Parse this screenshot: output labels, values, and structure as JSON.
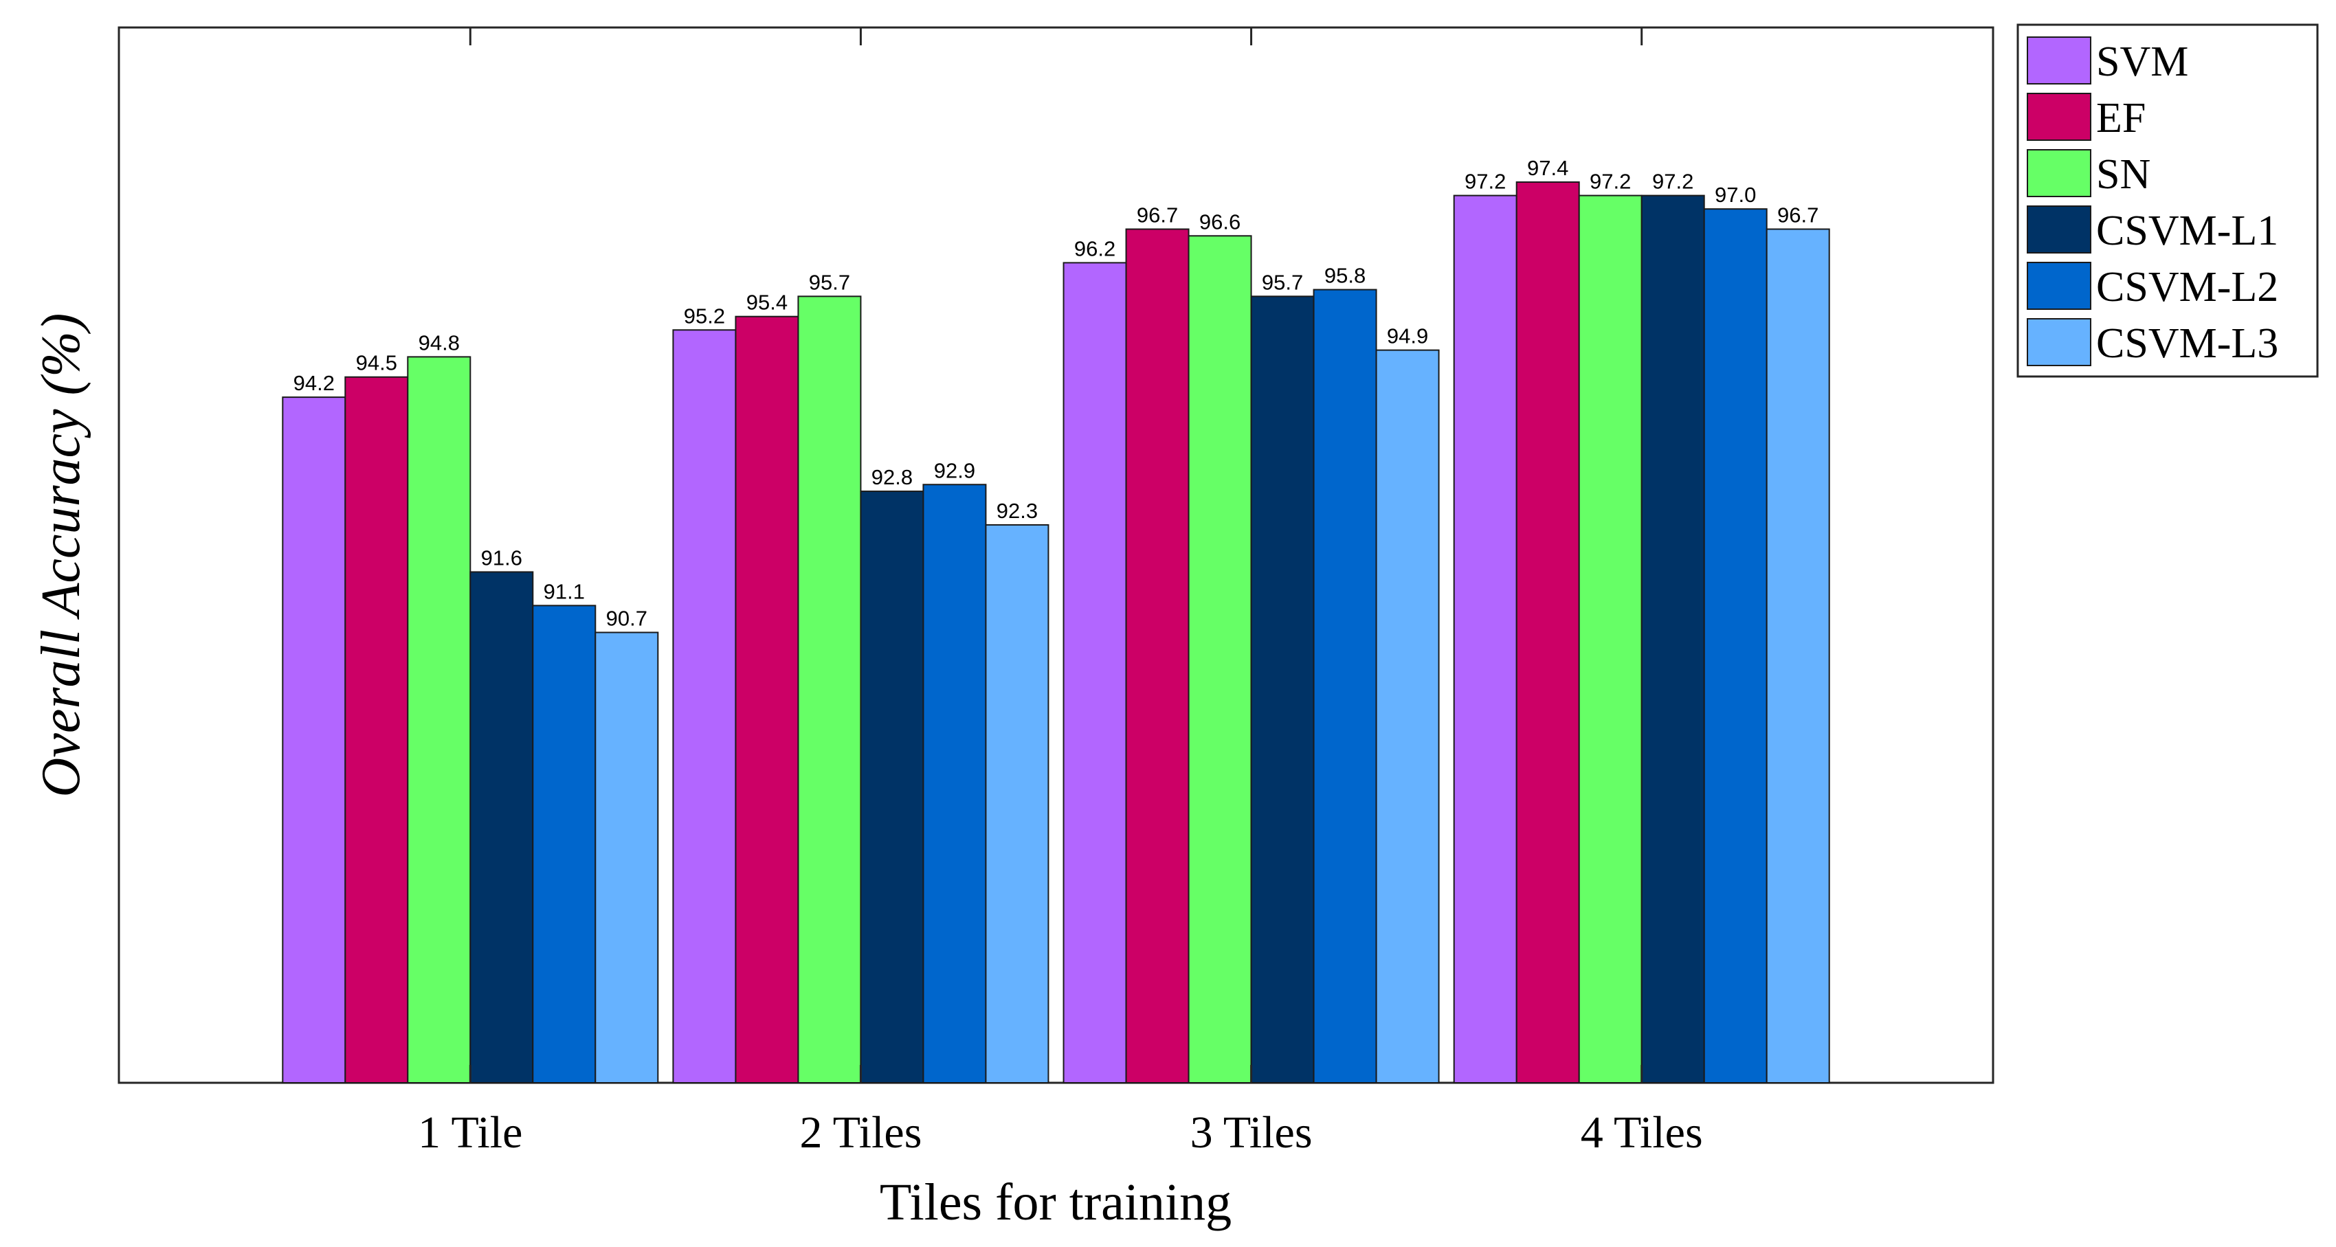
{
  "chart_data": {
    "type": "bar",
    "title": "",
    "xlabel": "Tiles for training",
    "ylabel": "Overall Accuracy (%)",
    "categories": [
      "1 Tile",
      "2 Tiles",
      "3 Tiles",
      "4 Tiles"
    ],
    "ylim": [
      84,
      99.7
    ],
    "legend_position": "outside-top-right",
    "series": [
      {
        "name": "SVM",
        "color": "#B266FF",
        "values": [
          94.2,
          95.2,
          96.2,
          97.2
        ],
        "labels": [
          "94.2",
          "95.2",
          "96.2",
          "97.2"
        ]
      },
      {
        "name": "EF",
        "color": "#CC0066",
        "values": [
          94.5,
          95.4,
          96.7,
          97.4
        ],
        "labels": [
          "94.5",
          "95.4",
          "96.7",
          "97.4"
        ]
      },
      {
        "name": "SN",
        "color": "#66FF66",
        "values": [
          94.8,
          95.7,
          96.6,
          97.2
        ],
        "labels": [
          "94.8",
          "95.7",
          "96.6",
          "97.2"
        ]
      },
      {
        "name": "CSVM-L1",
        "color": "#003366",
        "values": [
          91.6,
          92.8,
          95.7,
          97.2
        ],
        "labels": [
          "91.6",
          "92.8",
          "95.7",
          "97.2"
        ]
      },
      {
        "name": "CSVM-L2",
        "color": "#0066CC",
        "values": [
          91.1,
          92.9,
          95.8,
          97.0
        ],
        "labels": [
          "91.1",
          "92.9",
          "95.8",
          "97.0"
        ]
      },
      {
        "name": "CSVM-L3",
        "color": "#66B2FF",
        "values": [
          90.7,
          92.3,
          94.9,
          96.7
        ],
        "labels": [
          "90.7",
          "92.3",
          "94.9",
          "96.7"
        ]
      }
    ]
  }
}
